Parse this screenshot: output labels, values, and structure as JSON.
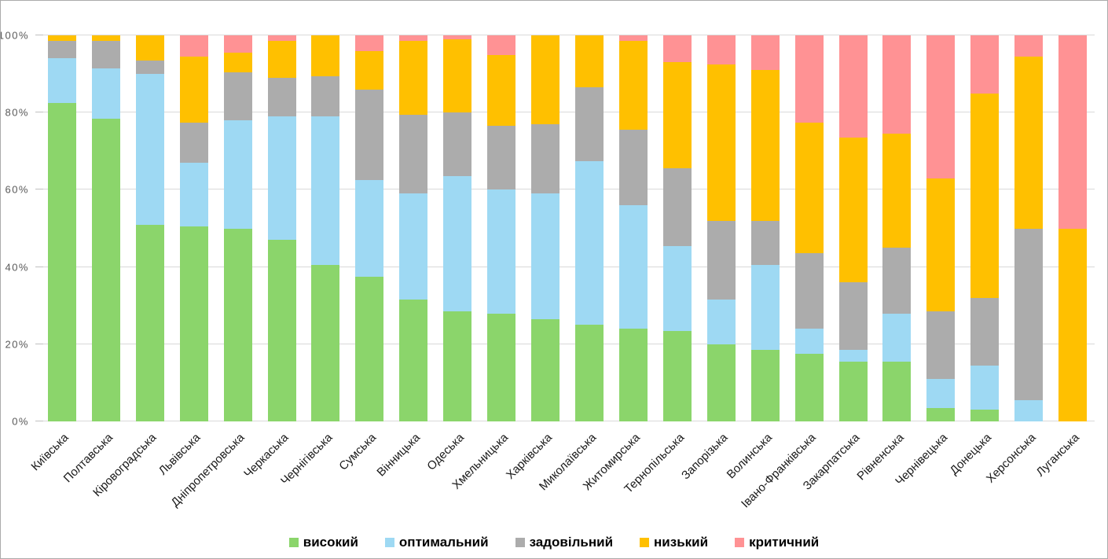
{
  "chart_data": {
    "type": "bar",
    "subtype": "stacked-100-percent",
    "title": "",
    "xlabel": "",
    "ylabel": "",
    "ylim": [
      0,
      100
    ],
    "grid": true,
    "legend_position": "bottom-center",
    "y_ticks": [
      "0%",
      "20%",
      "40%",
      "60%",
      "80%",
      "100%"
    ],
    "y_tick_values": [
      0,
      20,
      40,
      60,
      80,
      100
    ],
    "categories": [
      "Київська",
      "Полтавська",
      "Кіровоградська",
      "Львівська",
      "Дніпропетровська",
      "Черкаська",
      "Чернігівська",
      "Сумська",
      "Вінницька",
      "Одеська",
      "Хмельницька",
      "Харківська",
      "Миколаївська",
      "Житомирська",
      "Тернопільська",
      "Запорізька",
      "Волинська",
      "Івано-Франківська",
      "Закарпатська",
      "Рівненська",
      "Чернівецька",
      "Донецька",
      "Херсонська",
      "Луганська"
    ],
    "series": [
      {
        "name": "високий",
        "color": "#8bd56b",
        "values": [
          82.5,
          78.5,
          51,
          50.5,
          50,
          47,
          40.5,
          37.5,
          31.5,
          28.5,
          28,
          26.5,
          25,
          24,
          23.5,
          20,
          18.5,
          17.5,
          15.5,
          15.5,
          3.5,
          3,
          0,
          0
        ]
      },
      {
        "name": "оптимальний",
        "color": "#9ed9f3",
        "values": [
          11.5,
          13,
          39,
          16.5,
          28,
          32,
          38.5,
          25,
          27.5,
          35,
          32,
          32.5,
          42.5,
          32,
          22,
          11.5,
          22,
          6.5,
          3,
          12.5,
          7.5,
          11.5,
          5.5,
          0
        ]
      },
      {
        "name": "задовільний",
        "color": "#acacac",
        "values": [
          4.5,
          7,
          3.5,
          10.5,
          12.5,
          10,
          10.5,
          23.5,
          20.5,
          16.5,
          16.5,
          18,
          19,
          19.5,
          20,
          20.5,
          11.5,
          19.5,
          17.5,
          17,
          17.5,
          17.5,
          44.5,
          0
        ]
      },
      {
        "name": "низький",
        "color": "#ffc000",
        "values": [
          1.5,
          1.5,
          6.5,
          17,
          5,
          9.5,
          10.5,
          10,
          19,
          19,
          18.5,
          23,
          13.5,
          23,
          27.5,
          40.5,
          39,
          34,
          37.5,
          29.5,
          34.5,
          53,
          44.5,
          50
        ]
      },
      {
        "name": "критичний",
        "color": "#ff9294",
        "values": [
          0,
          0,
          0,
          5.5,
          4.5,
          1.5,
          0,
          4,
          1.5,
          1,
          5,
          0,
          0,
          1.5,
          7,
          7.5,
          9,
          22.5,
          26.5,
          25.5,
          37,
          15,
          5.5,
          50
        ]
      }
    ],
    "colors": {
      "gridline": "#d9d9d9",
      "tick": "#c0c0c0",
      "y_label_text": "#595959",
      "x_label_text": "#1a1a1a",
      "legend_text": "#000000",
      "background": "#ffffff",
      "border": "#ababab"
    }
  }
}
